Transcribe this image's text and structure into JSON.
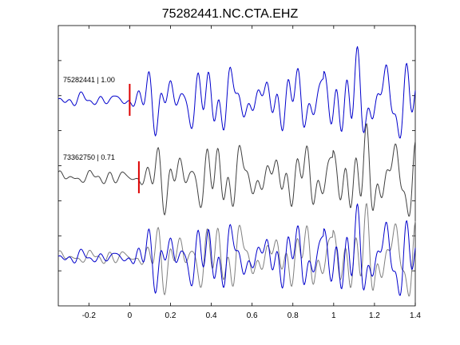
{
  "chart_data": {
    "type": "line",
    "title": "75282441.NC.CTA.EHZ",
    "xlabel": "",
    "ylabel": "",
    "xlim": [
      -0.35,
      1.4
    ],
    "x_ticks": [
      -0.2,
      0,
      0.2,
      0.4,
      0.6,
      0.8,
      1,
      1.2,
      1.4
    ],
    "x_tick_labels": [
      "-0.2",
      "0",
      "0.2",
      "0.4",
      "0.6",
      "0.8",
      "1",
      "1.2",
      "1.4"
    ],
    "y_ticks_count": 7,
    "grid": false,
    "colors": {
      "reference": "#0000cc",
      "match": "#404040",
      "pick": "#dd0000",
      "overlay_match": "#808080"
    },
    "traces": [
      {
        "id": "75282441",
        "label": "75282441 | 1.00",
        "correlation": 1.0,
        "pick_time": 0.0,
        "role": "reference"
      },
      {
        "id": "73362750",
        "label": "73362750 | 0.71",
        "correlation": 0.71,
        "pick_time": 0.045,
        "role": "match"
      }
    ],
    "overlay": {
      "description": "",
      "traces": [
        "75282441",
        "73362750"
      ]
    }
  }
}
